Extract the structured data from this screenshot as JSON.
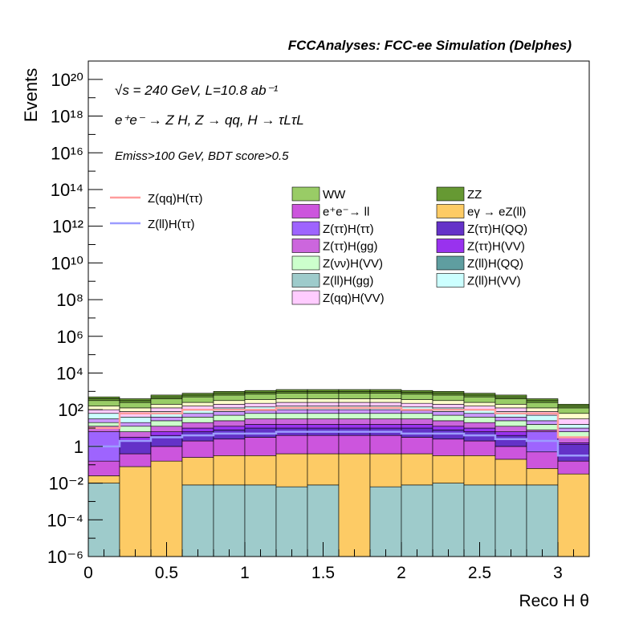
{
  "header": {
    "title": "FCCAnalyses: FCC-ee Simulation (Delphes)",
    "lines": [
      "√s = 240 GeV, L=10.8 ab⁻¹",
      "e⁺e⁻ → Z H, Z → qq, H → τLτL",
      "Emiss>100 GeV, BDT score>0.5"
    ]
  },
  "chart_data": {
    "type": "bar",
    "stacked": true,
    "ylabel": "Events",
    "xlabel": "Reco H θ",
    "xlim": [
      0,
      3.2
    ],
    "ylim": [
      1e-06,
      1e+21
    ],
    "ylog": true,
    "grid": false,
    "legend_placement": "middle",
    "bin_edges": [
      0,
      0.2,
      0.4,
      0.6,
      0.8,
      1.0,
      1.2,
      1.4,
      1.6,
      1.8,
      2.0,
      2.2,
      2.4,
      2.6,
      2.8,
      3.0,
      3.2
    ],
    "x_ticks": [
      "0",
      "0.5",
      "1",
      "1.5",
      "2",
      "2.5",
      "3"
    ],
    "y_ticks": [
      "10⁻⁶",
      "10⁻⁴",
      "10⁻²",
      "1",
      "10²",
      "10⁴",
      "10⁶",
      "10⁸",
      "10¹⁰",
      "10¹²",
      "10¹⁴",
      "10¹⁶",
      "10¹⁸",
      "10²⁰"
    ],
    "stack_boundaries_log10": [
      [
        -2.0,
        -6,
        -6,
        -2.1,
        -2.1,
        -2.1,
        -2.2,
        -2.1,
        -6,
        -2.2,
        -2.1,
        -2.0,
        -2.1,
        -2.1,
        -2.1,
        -6
      ],
      [
        -1.6,
        -1.1,
        -0.8,
        -0.6,
        -0.5,
        -0.5,
        -0.4,
        -0.4,
        -0.4,
        -0.4,
        -0.4,
        -0.5,
        -0.5,
        -0.7,
        -1.2,
        -1.5
      ],
      [
        -0.8,
        -0.4,
        0.0,
        0.3,
        0.4,
        0.5,
        0.6,
        0.6,
        0.6,
        0.6,
        0.5,
        0.4,
        0.3,
        0.0,
        -0.3,
        -0.8
      ],
      [
        0.8,
        -0.8,
        -0.3,
        0.0,
        0.2,
        0.3,
        0.4,
        0.4,
        0.4,
        0.4,
        0.3,
        0.2,
        0.0,
        -0.3,
        0.8,
        -0.8
      ],
      [
        0.7,
        0.3,
        0.6,
        0.8,
        0.9,
        1.0,
        1.0,
        1.0,
        1.0,
        1.0,
        1.0,
        0.9,
        0.8,
        0.6,
        0.4,
        0.1
      ],
      [
        0.8,
        0.5,
        0.8,
        1.0,
        1.1,
        1.2,
        1.2,
        1.2,
        1.2,
        1.2,
        1.2,
        1.1,
        1.0,
        0.8,
        0.6,
        0.2
      ],
      [
        1.1,
        0.8,
        1.1,
        1.3,
        1.4,
        1.5,
        1.5,
        1.5,
        1.5,
        1.5,
        1.5,
        1.4,
        1.3,
        1.1,
        0.9,
        0.5
      ],
      [
        1.3,
        1.1,
        1.4,
        1.6,
        1.7,
        1.8,
        1.8,
        1.8,
        1.8,
        1.8,
        1.8,
        1.7,
        1.6,
        1.4,
        1.2,
        0.8
      ],
      [
        1.5,
        1.3,
        1.6,
        1.8,
        1.9,
        1.95,
        2.0,
        2.0,
        2.0,
        2.0,
        1.95,
        1.9,
        1.8,
        1.6,
        1.4,
        1.0
      ],
      [
        1.8,
        1.6,
        1.9,
        2.0,
        2.1,
        2.15,
        2.2,
        2.2,
        2.2,
        2.2,
        2.15,
        2.1,
        2.0,
        1.9,
        1.7,
        1.2
      ],
      [
        2.0,
        1.9,
        2.1,
        2.2,
        2.3,
        2.35,
        2.4,
        2.4,
        2.4,
        2.4,
        2.35,
        2.3,
        2.2,
        2.1,
        1.9,
        1.5
      ],
      [
        2.2,
        2.1,
        2.3,
        2.4,
        2.5,
        2.55,
        2.6,
        2.6,
        2.6,
        2.6,
        2.55,
        2.5,
        2.4,
        2.3,
        2.1,
        1.8
      ],
      [
        2.5,
        2.4,
        2.6,
        2.7,
        2.8,
        2.85,
        2.9,
        2.9,
        2.9,
        2.9,
        2.85,
        2.8,
        2.7,
        2.6,
        2.4,
        2.1
      ],
      [
        2.6,
        2.5,
        2.7,
        2.8,
        2.9,
        2.95,
        3.0,
        3.0,
        3.0,
        3.0,
        2.95,
        2.9,
        2.8,
        2.7,
        2.5,
        2.2
      ],
      [
        2.7,
        2.6,
        2.8,
        2.9,
        3.0,
        3.05,
        3.1,
        3.1,
        3.1,
        3.1,
        3.05,
        3.0,
        2.9,
        2.8,
        2.6,
        2.3
      ]
    ],
    "stack_colors": [
      "#9ecbcb",
      "#fdcb65",
      "#cc55dd",
      "#9e64fe",
      "#6432c8",
      "#9932ee",
      "#cc66dd",
      "#ccffcc",
      "#cc99ff",
      "#ccffff",
      "#ffccff",
      "#ffffcc",
      "#99cc66",
      "#669933",
      "#669933"
    ],
    "signal_lines": [
      {
        "name": "Z(qq)H(ττ)",
        "color": "#ff9c9c",
        "values_log10": [
          1.0,
          1.8,
          1.8,
          2.0,
          2.0,
          2.0,
          2.1,
          2.1,
          2.1,
          2.1,
          2.0,
          2.0,
          2.0,
          1.8,
          1.8,
          0.5
        ]
      },
      {
        "name": "Z(ll)H(ττ)",
        "color": "#9c9cff",
        "values_log10": [
          0.0,
          0.3,
          0.5,
          0.6,
          0.7,
          0.7,
          0.8,
          0.8,
          0.8,
          0.8,
          0.7,
          0.7,
          0.6,
          0.4,
          0.3,
          -0.5
        ]
      }
    ],
    "legend": [
      {
        "name": "WW",
        "color": "#99cc66"
      },
      {
        "name": "ZZ",
        "color": "#669933"
      },
      {
        "name": "e⁺e⁻→ ll",
        "color": "#cc55dd"
      },
      {
        "name": "eγ → eZ(ll)",
        "color": "#fdcb65"
      },
      {
        "name": "Z(ττ)H(ττ)",
        "color": "#9e64fe"
      },
      {
        "name": "Z(ττ)H(QQ)",
        "color": "#6432c8"
      },
      {
        "name": "Z(ττ)H(gg)",
        "color": "#cc66dd"
      },
      {
        "name": "Z(ττ)H(VV)",
        "color": "#9932ee"
      },
      {
        "name": "Z(νν)H(VV)",
        "color": "#ccffcc"
      },
      {
        "name": "Z(ll)H(QQ)",
        "color": "#5f9ea0"
      },
      {
        "name": "Z(ll)H(gg)",
        "color": "#9ecbcb"
      },
      {
        "name": "Z(ll)H(VV)",
        "color": "#ccffff"
      },
      {
        "name": "Z(qq)H(VV)",
        "color": "#ffccff"
      }
    ]
  }
}
